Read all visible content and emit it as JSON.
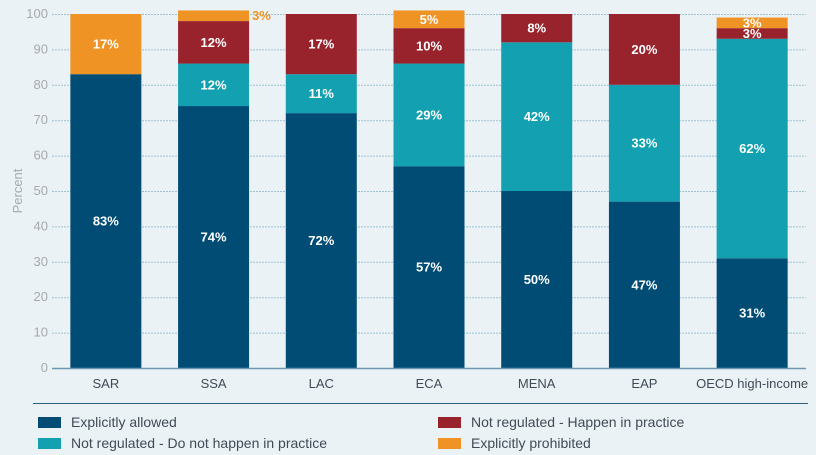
{
  "chart_data": {
    "type": "bar",
    "stacked": true,
    "title": "",
    "xlabel": "",
    "ylabel": "Percent",
    "ylim": [
      0,
      100
    ],
    "yticks": [
      0,
      10,
      20,
      30,
      40,
      50,
      60,
      70,
      80,
      90,
      100
    ],
    "grid": true,
    "legend_position": "bottom",
    "categories": [
      "SAR",
      "SSA",
      "LAC",
      "ECA",
      "MENA",
      "EAP",
      "OECD high-income"
    ],
    "series": [
      {
        "name": "Explicitly allowed",
        "color": "#004c75",
        "values": [
          83,
          74,
          72,
          57,
          50,
          47,
          31
        ],
        "labels": [
          "83%",
          "74%",
          "72%",
          "57%",
          "50%",
          "47%",
          "31%"
        ]
      },
      {
        "name": "Not regulated - Do not happen in practice",
        "color": "#13a0b0",
        "values": [
          0,
          12,
          11,
          29,
          42,
          33,
          62
        ],
        "labels": [
          "",
          "12%",
          "11%",
          "29%",
          "42%",
          "33%",
          "62%"
        ]
      },
      {
        "name": "Not regulated - Happen in practice",
        "color": "#98232d",
        "values": [
          0,
          12,
          17,
          10,
          8,
          20,
          3
        ],
        "labels": [
          "",
          "12%",
          "17%",
          "10%",
          "8%",
          "20%",
          "3%"
        ]
      },
      {
        "name": "Explicitly prohibited",
        "color": "#ee9324",
        "values": [
          17,
          3,
          0,
          5,
          0,
          0,
          3
        ],
        "labels": [
          "17%",
          "3%",
          "",
          "5%",
          "",
          "",
          "3%"
        ]
      }
    ],
    "outside_labels": [
      {
        "category": "SSA",
        "series": "Explicitly prohibited"
      }
    ]
  },
  "legend": {
    "items": [
      {
        "label": "Explicitly allowed",
        "color": "#004c75"
      },
      {
        "label": "Not regulated - Happen in practice",
        "color": "#98232d"
      },
      {
        "label": "Not regulated - Do not happen in practice",
        "color": "#13a0b0"
      },
      {
        "label": "Explicitly prohibited",
        "color": "#ee9324"
      }
    ]
  }
}
